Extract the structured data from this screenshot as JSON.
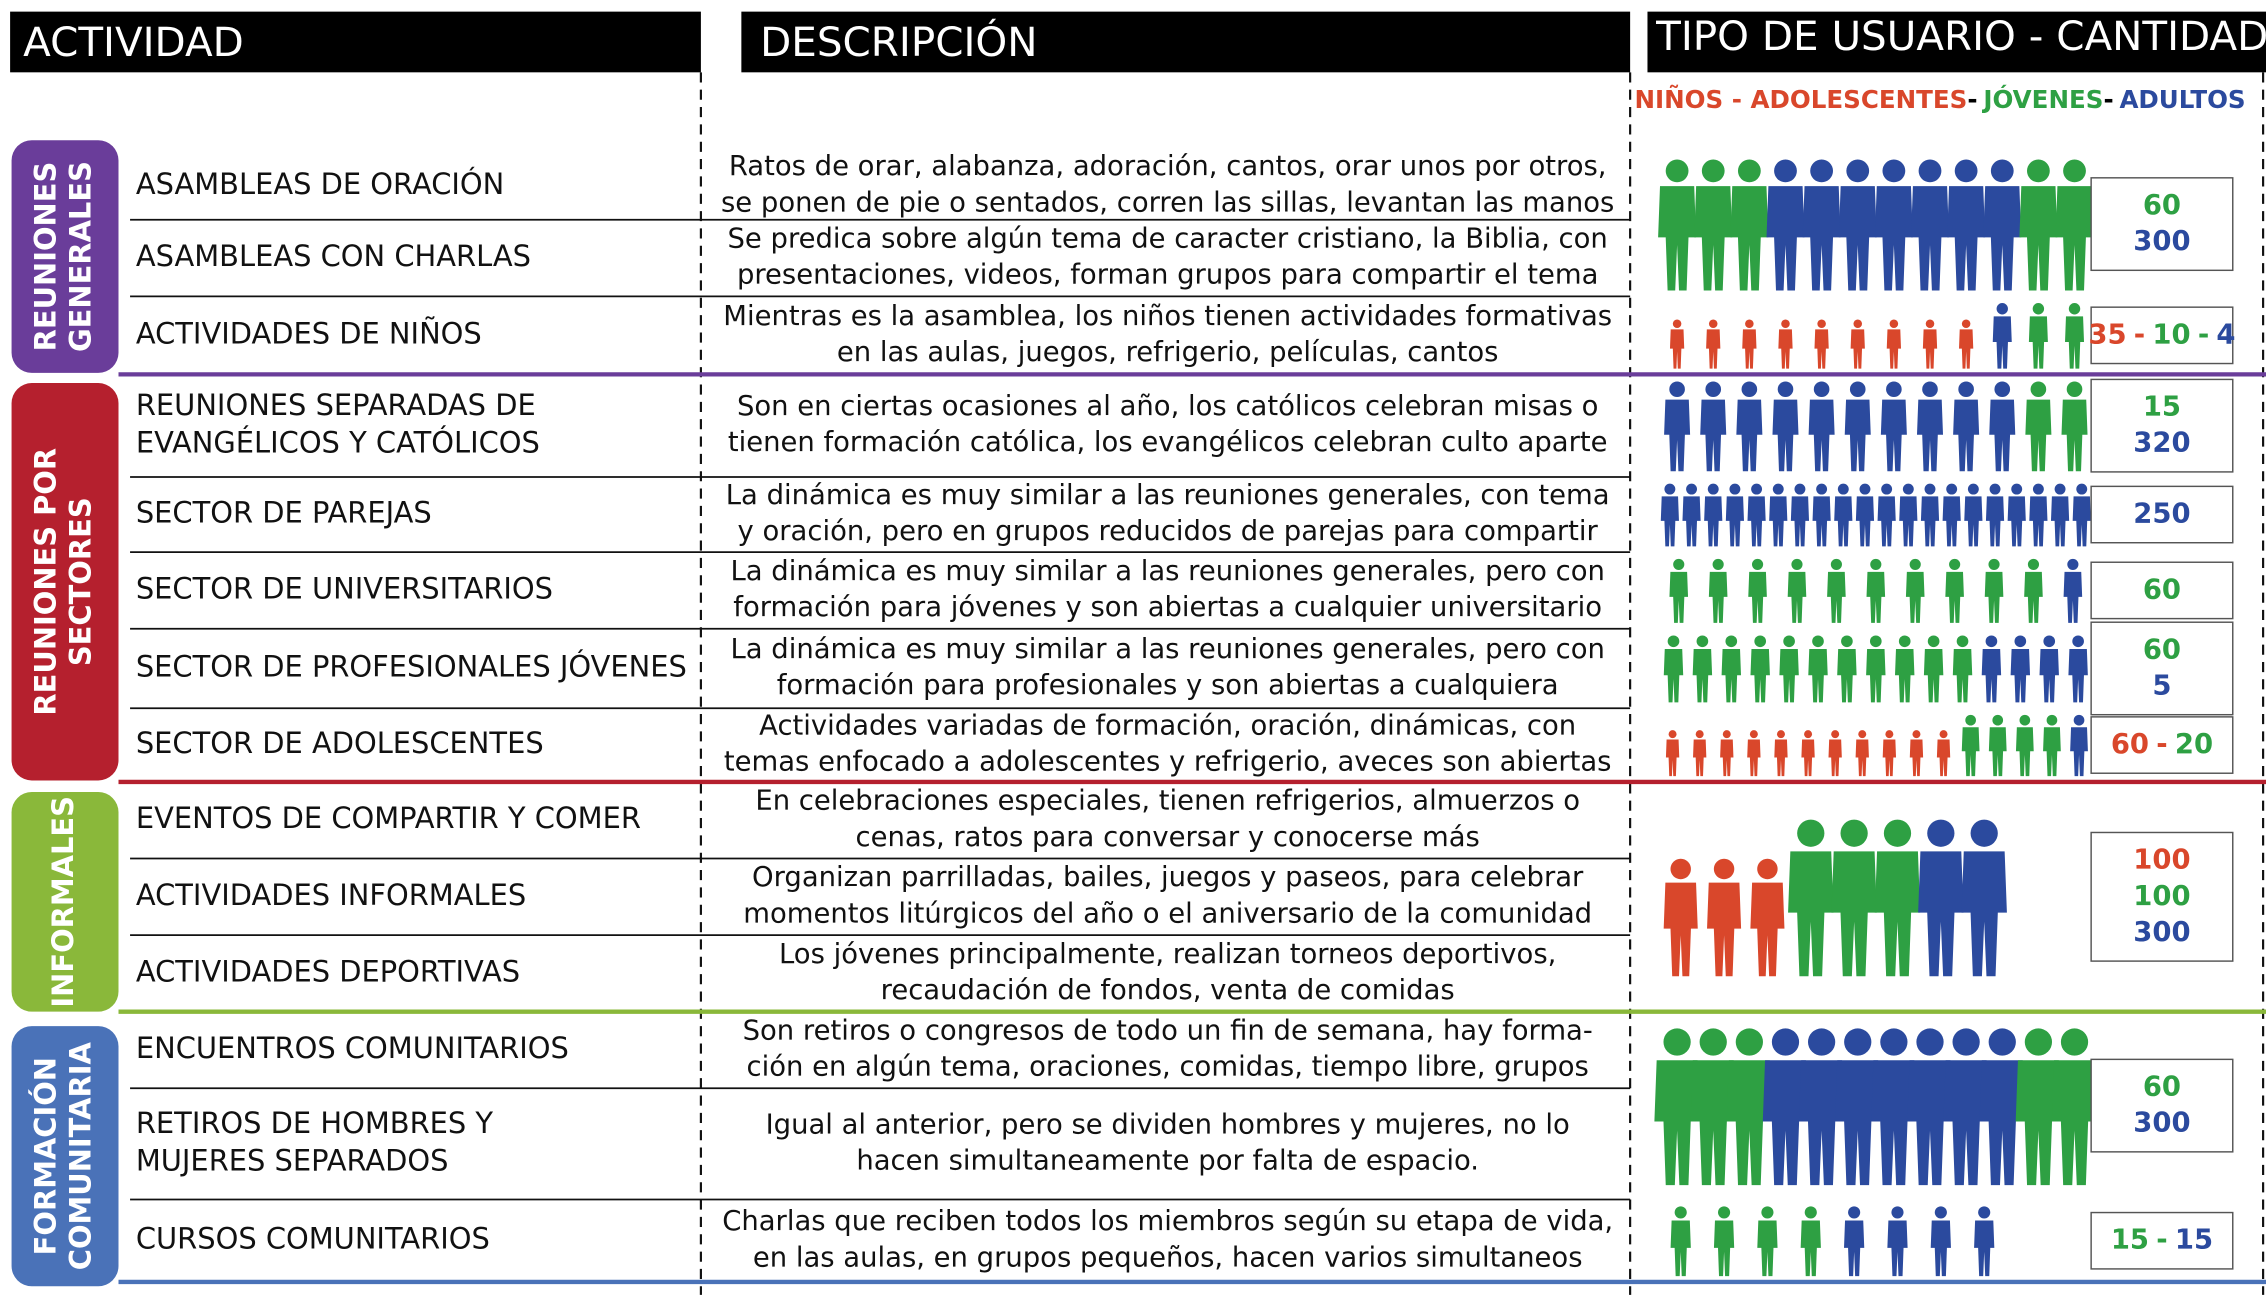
{
  "headers": {
    "activity": "ACTIVIDAD",
    "description": "DESCRIPCIÓN",
    "users": "TIPO DE USUARIO - CANTIDAD"
  },
  "legend": {
    "separator": "-",
    "items": [
      {
        "text": "NIÑOS - ADOLESCENTES",
        "color": "#d9472b"
      },
      {
        "text": "JÓVENES",
        "color": "#2ea043"
      },
      {
        "text": "ADULTOS",
        "color": "#2b4a9e"
      }
    ]
  },
  "groups": [
    {
      "label": [
        "REUNIONES",
        "GENERALES"
      ],
      "color": "#6a3d9a",
      "blocks": [
        {
          "rows": [
            {
              "activity": [
                "ASAMBLEAS DE ORACIÓN"
              ],
              "description": [
                "Ratos de orar, alabanza, adoración, cantos, orar unos por otros,",
                "se ponen de pie o sentados, corren las sillas, levantan las manos"
              ]
            },
            {
              "activity": [
                "ASAMBLEAS CON CHARLAS"
              ],
              "description": [
                "Se predica sobre algún tema de caracter cristiano, la Biblia, con",
                "presentaciones, videos, forman grupos para compartir el tema"
              ]
            }
          ],
          "counts": [
            [
              {
                "value": 60,
                "color": "#2ea043"
              }
            ],
            [
              {
                "value": 300,
                "color": "#2b4a9e"
              }
            ]
          ]
        },
        {
          "rows": [
            {
              "activity": [
                "ACTIVIDADES DE NIÑOS"
              ],
              "description": [
                "Mientras es la asamblea, los niños tienen actividades formativas",
                "en las aulas, juegos, refrigerio, películas, cantos"
              ]
            }
          ],
          "counts": [
            [
              {
                "value": 35,
                "color": "#d9472b"
              },
              {
                "value": 10,
                "color": "#2ea043"
              },
              {
                "value": 4,
                "color": "#2b4a9e"
              }
            ]
          ]
        }
      ]
    },
    {
      "label": [
        "REUNIONES POR",
        "SECTORES"
      ],
      "color": "#b5202e",
      "blocks": [
        {
          "rows": [
            {
              "activity": [
                "REUNIONES SEPARADAS DE",
                "EVANGÉLICOS Y CATÓLICOS"
              ],
              "description": [
                "Son en ciertas ocasiones al año, los católicos celebran misas o",
                "tienen formación católica, los evangélicos celebran culto aparte"
              ]
            }
          ],
          "counts": [
            [
              {
                "value": 15,
                "color": "#2ea043"
              }
            ],
            [
              {
                "value": 320,
                "color": "#2b4a9e"
              }
            ]
          ]
        },
        {
          "rows": [
            {
              "activity": [
                "SECTOR DE PAREJAS"
              ],
              "description": [
                "La dinámica es muy similar a las reuniones generales, con tema",
                "y oración, pero en grupos reducidos de parejas para compartir"
              ]
            }
          ],
          "counts": [
            [
              {
                "value": 250,
                "color": "#2b4a9e"
              }
            ]
          ]
        },
        {
          "rows": [
            {
              "activity": [
                "SECTOR DE UNIVERSITARIOS"
              ],
              "description": [
                "La dinámica es muy similar a las reuniones generales, pero con",
                "formación para jóvenes y son abiertas a cualquier universitario"
              ]
            }
          ],
          "counts": [
            [
              {
                "value": 60,
                "color": "#2ea043"
              }
            ]
          ]
        },
        {
          "rows": [
            {
              "activity": [
                "SECTOR DE PROFESIONALES JÓVENES"
              ],
              "description": [
                "La dinámica es muy similar a las reuniones generales, pero con",
                "formación para profesionales y son abiertas a cualquiera"
              ]
            }
          ],
          "counts": [
            [
              {
                "value": 60,
                "color": "#2ea043"
              }
            ],
            [
              {
                "value": 5,
                "color": "#2b4a9e"
              }
            ]
          ]
        },
        {
          "rows": [
            {
              "activity": [
                "SECTOR DE ADOLESCENTES"
              ],
              "description": [
                "Actividades variadas de formación, oración, dinámicas, con",
                "temas enfocado a adolescentes y refrigerio, aveces son abiertas"
              ]
            }
          ],
          "counts": [
            [
              {
                "value": 60,
                "color": "#d9472b"
              },
              {
                "value": 20,
                "color": "#2ea043"
              }
            ]
          ]
        }
      ]
    },
    {
      "label": [
        "INFORMALES"
      ],
      "color": "#8ab83a",
      "blocks": [
        {
          "rows": [
            {
              "activity": [
                "EVENTOS DE COMPARTIR Y COMER"
              ],
              "description": [
                "En celebraciones especiales, tienen refrigerios, almuerzos o",
                "cenas, ratos para conversar y conocerse más"
              ]
            },
            {
              "activity": [
                "ACTIVIDADES INFORMALES"
              ],
              "description": [
                "Organizan parrilladas, bailes, juegos y paseos, para celebrar",
                "momentos litúrgicos del año o el aniversario de la comunidad"
              ]
            },
            {
              "activity": [
                "ACTIVIDADES DEPORTIVAS"
              ],
              "description": [
                "Los jóvenes principalmente, realizan torneos deportivos,",
                "recaudación de fondos, venta de comidas"
              ]
            }
          ],
          "counts": [
            [
              {
                "value": 100,
                "color": "#d9472b"
              }
            ],
            [
              {
                "value": 100,
                "color": "#2ea043"
              }
            ],
            [
              {
                "value": 300,
                "color": "#2b4a9e"
              }
            ]
          ]
        }
      ]
    },
    {
      "label": [
        "FORMACIÓN",
        "COMUNITARIA"
      ],
      "color": "#4a72b8",
      "blocks": [
        {
          "rows": [
            {
              "activity": [
                "ENCUENTROS COMUNITARIOS"
              ],
              "description": [
                "Son retiros o congresos de todo un fin de semana, hay forma-",
                "ción en algún tema, oraciones, comidas, tiempo libre, grupos"
              ]
            },
            {
              "activity": [
                "RETIROS DE HOMBRES Y",
                "MUJERES SEPARADOS"
              ],
              "description": [
                "Igual al anterior, pero se dividen hombres y mujeres, no lo",
                "hacen simultaneamente por falta de espacio."
              ]
            }
          ],
          "counts": [
            [
              {
                "value": 60,
                "color": "#2ea043"
              }
            ],
            [
              {
                "value": 300,
                "color": "#2b4a9e"
              }
            ]
          ]
        },
        {
          "rows": [
            {
              "activity": [
                "CURSOS COMUNITARIOS"
              ],
              "description": [
                "Charlas que reciben todos los miembros según su etapa de vida,",
                "en las aulas, en grupos pequeños, hacen varios simultaneos"
              ]
            }
          ],
          "counts": [
            [
              {
                "value": 15,
                "color": "#2ea043"
              },
              {
                "value": 15,
                "color": "#2b4a9e"
              }
            ]
          ]
        }
      ]
    }
  ]
}
